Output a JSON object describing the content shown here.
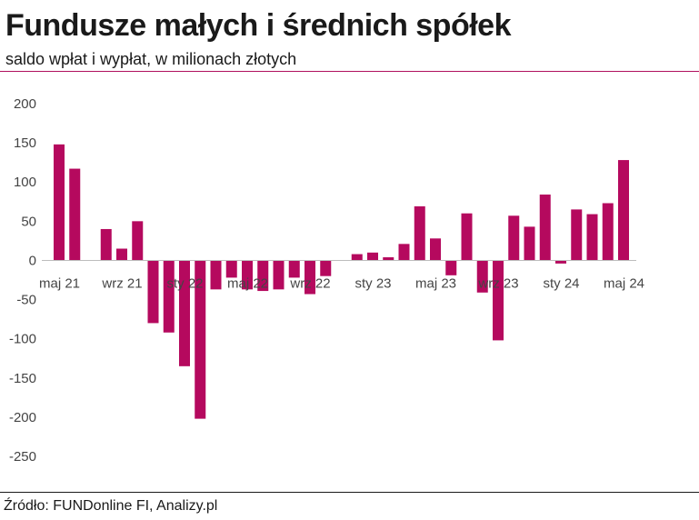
{
  "header": {
    "title": "Fundusze małych i średnich spółek",
    "subtitle": "saldo wpłat i wypłat, w milionach złotych"
  },
  "footer": {
    "source": "Źródło: FUNDonline FI, Analizy.pl"
  },
  "colors": {
    "bar": "#b5095e",
    "accent_rule": "#b0105e",
    "text": "#1a1a1a",
    "axis_text": "#444444"
  },
  "chart_data": {
    "type": "bar",
    "title": "Fundusze małych i średnich spółek",
    "subtitle": "saldo wpłat i wypłat, w milionach złotych",
    "xlabel": "",
    "ylabel": "",
    "ylim": [
      -250,
      200
    ],
    "yticks": [
      200,
      150,
      100,
      50,
      0,
      -50,
      -100,
      -150,
      -200,
      -250
    ],
    "grid": false,
    "legend": "none",
    "categories": [
      "2021-05",
      "2021-06",
      "2021-07",
      "2021-08",
      "2021-09",
      "2021-10",
      "2021-11",
      "2021-12",
      "2022-01",
      "2022-02",
      "2022-03",
      "2022-04",
      "2022-05",
      "2022-06",
      "2022-07",
      "2022-08",
      "2022-09",
      "2022-10",
      "2022-11",
      "2022-12",
      "2023-01",
      "2023-02",
      "2023-03",
      "2023-04",
      "2023-05",
      "2023-06",
      "2023-07",
      "2023-08",
      "2023-09",
      "2023-10",
      "2023-11",
      "2023-12",
      "2024-01",
      "2024-02",
      "2024-03",
      "2024-04",
      "2024-05"
    ],
    "values": [
      148,
      117,
      0,
      40,
      15,
      50,
      -80,
      -92,
      -135,
      -202,
      -37,
      -22,
      -37,
      -39,
      -37,
      -22,
      -43,
      -20,
      0,
      8,
      10,
      4,
      21,
      69,
      28,
      -19,
      60,
      -41,
      -102,
      57,
      43,
      84,
      -4,
      65,
      59,
      73,
      128
    ],
    "tick_labels": [
      {
        "index": 0,
        "label": "maj 21"
      },
      {
        "index": 4,
        "label": "wrz 21"
      },
      {
        "index": 8,
        "label": "sty 22"
      },
      {
        "index": 12,
        "label": "maj 22"
      },
      {
        "index": 16,
        "label": "wrz 22"
      },
      {
        "index": 20,
        "label": "sty 23"
      },
      {
        "index": 24,
        "label": "maj 23"
      },
      {
        "index": 28,
        "label": "wrz 23"
      },
      {
        "index": 32,
        "label": "sty 24"
      },
      {
        "index": 36,
        "label": "maj 24"
      }
    ]
  }
}
